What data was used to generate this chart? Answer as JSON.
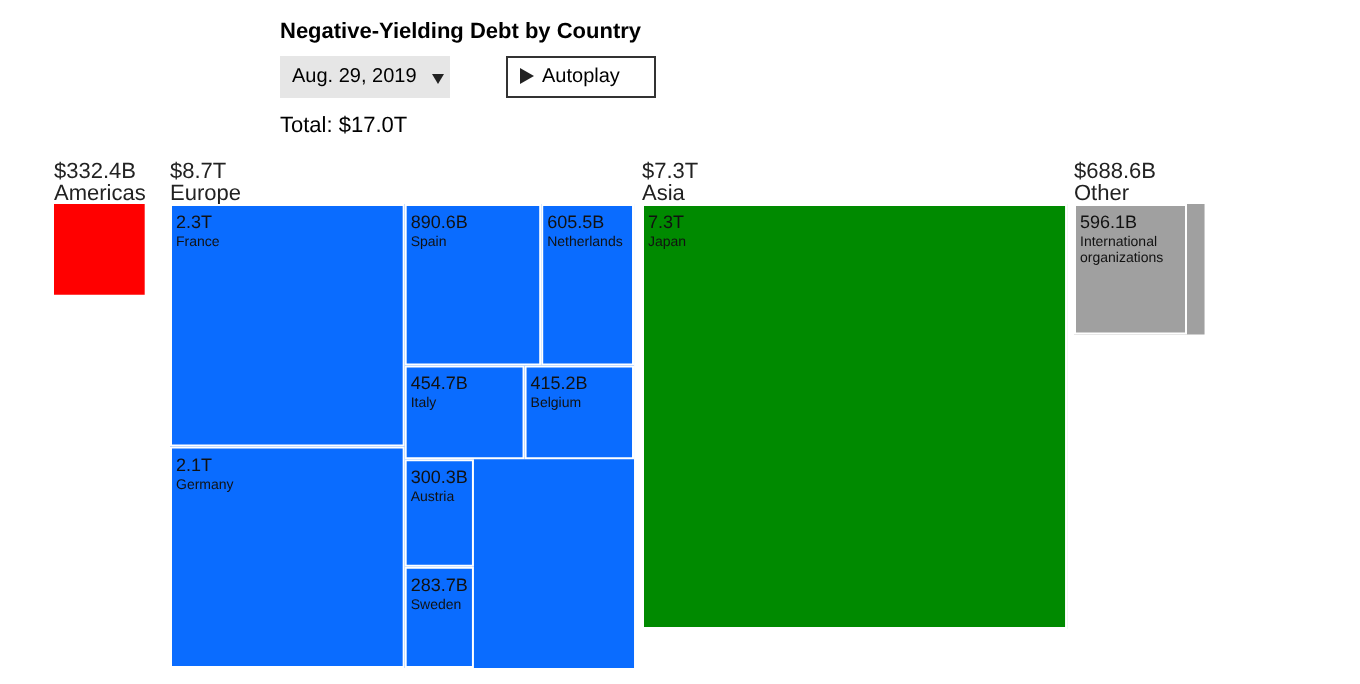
{
  "chart_data": [
    {
      "type": "other",
      "title": "Negative-Yielding Debt by Country",
      "subtitle": "Total: $17.0T",
      "annotations": [
        "Aug. 29, 2019",
        "Autoplay"
      ]
    },
    {
      "type": "other",
      "categories": [
        "Americas"
      ],
      "values": [
        332400000000
      ],
      "value_labels": [
        "$332.4B"
      ],
      "color": "#ff0000"
    },
    {
      "type": "other",
      "categories": [
        "Europe",
        "France",
        "Germany",
        "Spain",
        "Netherlands",
        "Italy",
        "Belgium",
        "Austria",
        "Sweden"
      ],
      "values": [
        8700000000000,
        2300000000000,
        2100000000000,
        890600000000,
        605500000000,
        454700000000,
        415200000000,
        300300000000,
        283700000000
      ],
      "value_labels": [
        "$8.7T",
        "2.3T",
        "2.1T",
        "890.6B",
        "605.5B",
        "454.7B",
        "415.2B",
        "300.3B",
        "283.7B"
      ],
      "color": "#0a6cff"
    },
    {
      "type": "other",
      "categories": [
        "Asia",
        "Japan"
      ],
      "values": [
        7300000000000,
        7300000000000
      ],
      "value_labels": [
        "$7.3T",
        "7.3T"
      ],
      "color": "#008a00"
    },
    {
      "type": "other",
      "categories": [
        "Other",
        "International organizations"
      ],
      "values": [
        688600000000,
        596100000000
      ],
      "value_labels": [
        "$688.6B",
        "596.1B"
      ],
      "color": "#a0a0a0"
    }
  ]
}
